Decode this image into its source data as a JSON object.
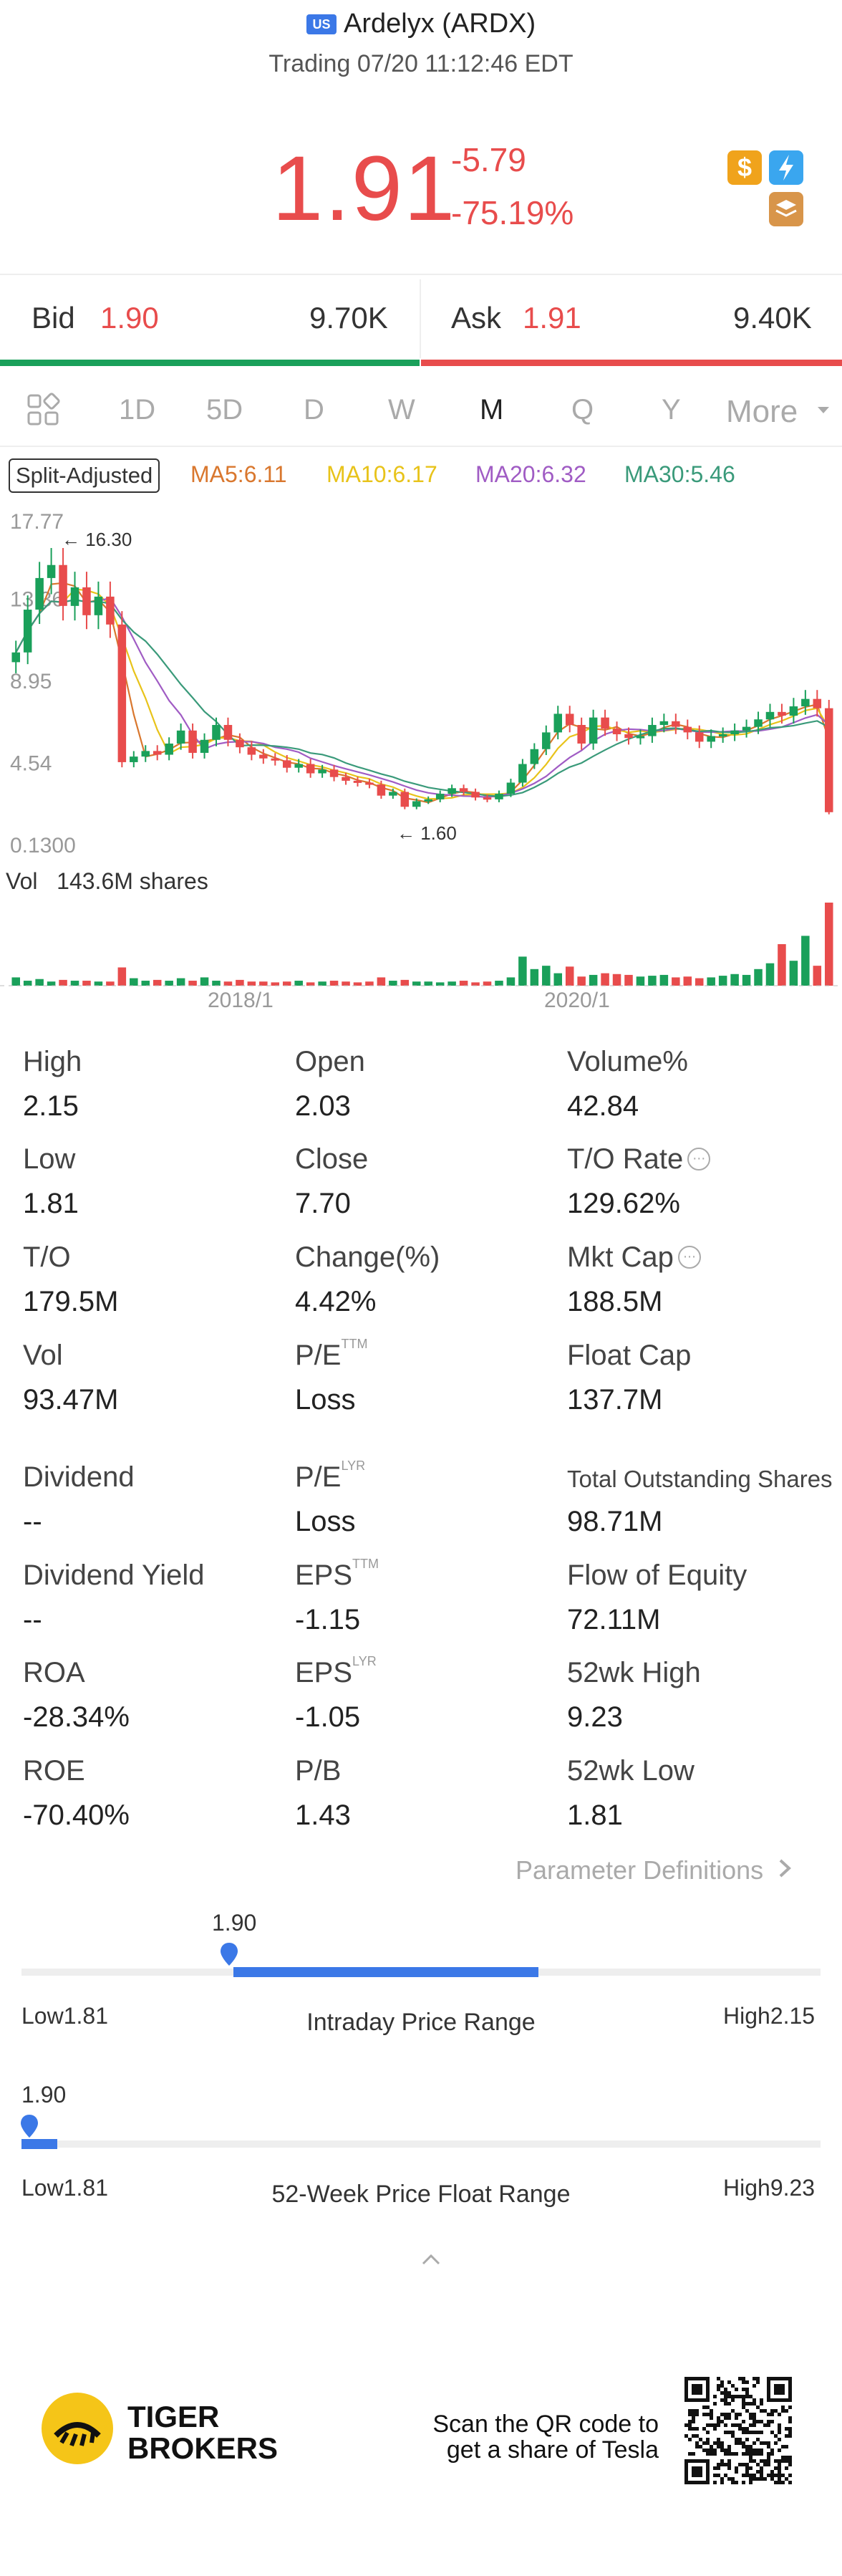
{
  "header": {
    "market_badge": "US",
    "stock_name": "Ardelyx (ARDX)",
    "trading_time": "Trading 07/20 11:12:46 EDT",
    "price": "1.91",
    "change": "-5.79",
    "change_pct": "-75.19%",
    "icons": [
      "dollar-icon",
      "flash-icon",
      "stack-icon"
    ],
    "dollar_glyph": "$"
  },
  "bidask": {
    "bid_label": "Bid",
    "bid_price": "1.90",
    "bid_size": "9.70K",
    "ask_label": "Ask",
    "ask_price": "1.91",
    "ask_size": "9.40K"
  },
  "tabs": {
    "items": [
      "1D",
      "5D",
      "D",
      "W",
      "M",
      "Q",
      "Y",
      "More"
    ],
    "active": "M"
  },
  "chart_legend": {
    "split_adjusted": "Split-Adjusted",
    "ma5": "MA5:6.11",
    "ma10": "MA10:6.17",
    "ma20": "MA20:6.32",
    "ma30": "MA30:5.46",
    "colors": {
      "ma5": "#d9772e",
      "ma10": "#e8c31a",
      "ma20": "#a05cc4",
      "ma30": "#3a9a7a",
      "up": "#1aa05a",
      "down": "#e84c4c"
    }
  },
  "chart_data": {
    "type": "candlestick",
    "y_axis_ticks": [
      "17.77",
      "13.36",
      "8.95",
      "4.54",
      "0.1300"
    ],
    "ylim": [
      0.13,
      17.77
    ],
    "x_ticks": [
      "2018/1",
      "2020/1"
    ],
    "max_annotation": "16.30",
    "min_annotation": "1.60",
    "volume_label": "Vol",
    "volume_value": "143.6M shares",
    "closes": [
      10.5,
      12.8,
      14.5,
      15.2,
      13.0,
      14.0,
      12.5,
      13.5,
      12.0,
      4.6,
      4.9,
      5.2,
      5.0,
      5.6,
      6.3,
      5.1,
      5.8,
      6.6,
      5.8,
      5.4,
      5.0,
      4.8,
      4.7,
      4.3,
      4.5,
      4.0,
      4.2,
      3.8,
      3.6,
      3.5,
      3.4,
      2.8,
      3.0,
      2.2,
      2.5,
      2.6,
      2.9,
      3.2,
      3.0,
      2.7,
      2.6,
      2.9,
      3.5,
      4.5,
      5.3,
      6.2,
      7.2,
      6.6,
      5.6,
      7.0,
      6.4,
      6.1,
      5.9,
      6.0,
      6.6,
      6.8,
      6.5,
      6.2,
      5.7,
      6.0,
      6.1,
      6.3,
      6.5,
      6.9,
      7.3,
      7.1,
      7.6,
      8.0,
      7.5,
      1.91
    ],
    "volume": [
      1.0,
      0.6,
      0.8,
      0.5,
      0.7,
      0.6,
      0.6,
      0.5,
      0.5,
      2.2,
      0.9,
      0.6,
      0.7,
      0.6,
      0.9,
      0.6,
      1.0,
      0.6,
      0.5,
      0.7,
      0.5,
      0.5,
      0.4,
      0.5,
      0.6,
      0.4,
      0.5,
      0.6,
      0.5,
      0.4,
      0.5,
      1.0,
      0.6,
      0.7,
      0.5,
      0.5,
      0.4,
      0.5,
      0.6,
      0.4,
      0.5,
      0.6,
      1.0,
      3.5,
      2.0,
      2.4,
      1.5,
      2.3,
      1.1,
      1.3,
      1.5,
      1.4,
      1.3,
      1.1,
      1.2,
      1.3,
      1.0,
      1.1,
      0.9,
      1.0,
      1.2,
      1.4,
      1.3,
      2.0,
      2.7,
      5.0,
      3.0,
      6.0,
      2.4,
      10.0
    ]
  },
  "stats": [
    {
      "label": "High",
      "value": "2.15"
    },
    {
      "label": "Open",
      "value": "2.03"
    },
    {
      "label": "Volume%",
      "value": "42.84"
    },
    {
      "label": "Low",
      "value": "1.81"
    },
    {
      "label": "Close",
      "value": "7.70"
    },
    {
      "label": "T/O Rate",
      "value": "129.62%"
    },
    {
      "label": "T/O",
      "value": "179.5M"
    },
    {
      "label": "Change(%)",
      "value": "4.42%"
    },
    {
      "label": "Mkt Cap",
      "value": "188.5M"
    },
    {
      "label": "Vol",
      "value": "93.47M"
    },
    {
      "label": "P/E",
      "sup": "TTM",
      "value": "Loss"
    },
    {
      "label": "Float Cap",
      "value": "137.7M"
    },
    {
      "label": "Dividend",
      "value": "--"
    },
    {
      "label": "P/E",
      "sup": "LYR",
      "value": "Loss"
    },
    {
      "label": "Total Outstanding Shares",
      "value": "98.71M"
    },
    {
      "label": "Dividend Yield",
      "value": "--"
    },
    {
      "label": "EPS",
      "sup": "TTM",
      "value": "-1.15"
    },
    {
      "label": "Flow of Equity",
      "value": "72.11M"
    },
    {
      "label": "ROA",
      "value": "-28.34%"
    },
    {
      "label": "EPS",
      "sup": "LYR",
      "value": "-1.05"
    },
    {
      "label": "52wk High",
      "value": "9.23"
    },
    {
      "label": "ROE",
      "value": "-70.40%"
    },
    {
      "label": "P/B",
      "value": "1.43"
    },
    {
      "label": "52wk Low",
      "value": "1.81"
    }
  ],
  "param_definitions": "Parameter Definitions",
  "intraday_range": {
    "current": "1.90",
    "low_label": "Low",
    "low": "1.81",
    "high_label": "High",
    "high": "2.15",
    "title": "Intraday Price Range",
    "current_fraction": 0.26
  },
  "week52_range": {
    "current": "1.90",
    "low_label": "Low",
    "low": "1.81",
    "high_label": "High",
    "high": "9.23",
    "title": "52-Week Price Float Range",
    "current_fraction": 0.01
  },
  "footer": {
    "brand_line1": "TIGER",
    "brand_line2": "BROKERS",
    "qr_line1": "Scan the QR code to",
    "qr_line2": "get a share of Tesla"
  }
}
